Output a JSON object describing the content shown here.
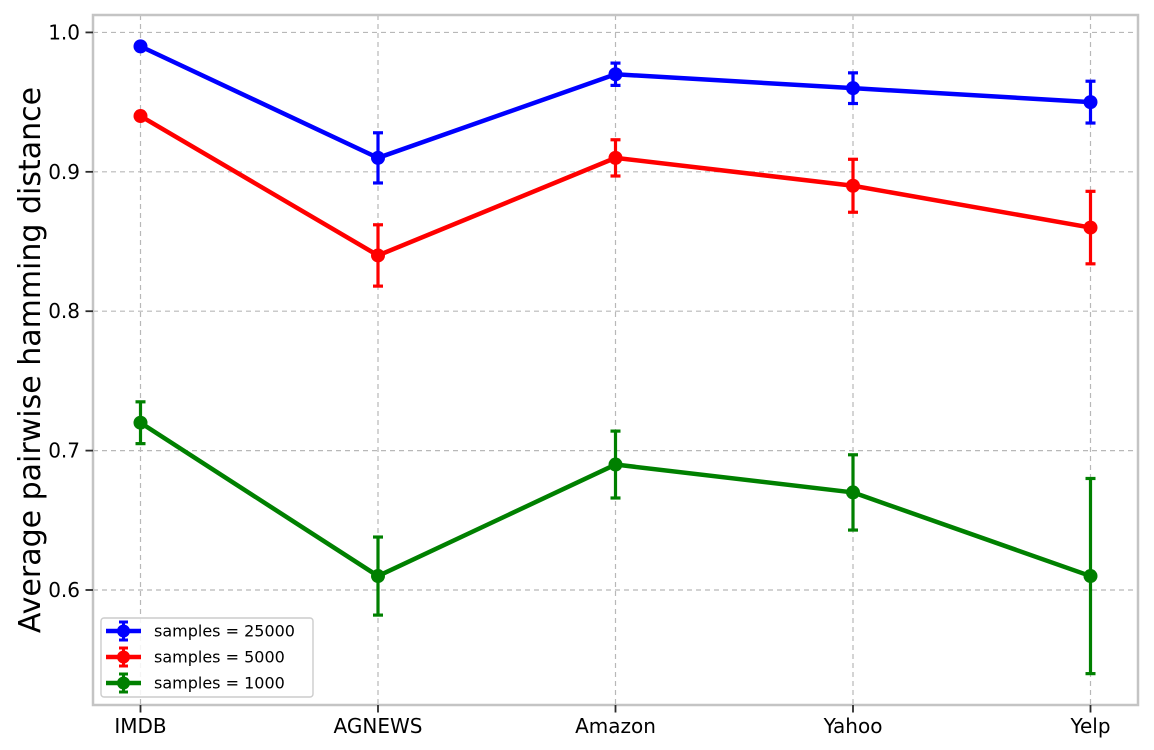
{
  "chart_data": {
    "type": "line",
    "subtype": "errorbar",
    "title": "",
    "xlabel": "",
    "ylabel": "Average pairwise hamming distance",
    "categories": [
      "IMDB",
      "AGNEWS",
      "Amazon",
      "Yahoo",
      "Yelp"
    ],
    "series": [
      {
        "name": "samples = 25000",
        "color": "#0000ff",
        "values": [
          0.99,
          0.91,
          0.97,
          0.96,
          0.95
        ],
        "yerr": [
          0.002,
          0.018,
          0.008,
          0.011,
          0.015
        ]
      },
      {
        "name": "samples = 5000",
        "color": "#ff0000",
        "values": [
          0.94,
          0.84,
          0.91,
          0.89,
          0.86
        ],
        "yerr": [
          0.002,
          0.022,
          0.013,
          0.019,
          0.026
        ]
      },
      {
        "name": "samples = 1000",
        "color": "#008000",
        "values": [
          0.72,
          0.61,
          0.69,
          0.67,
          0.61
        ],
        "yerr": [
          0.015,
          0.028,
          0.024,
          0.027,
          0.07
        ]
      }
    ],
    "yticks": [
      {
        "value": 0.6,
        "label": "0.6"
      },
      {
        "value": 0.7,
        "label": "0.7"
      },
      {
        "value": 0.8,
        "label": "0.8"
      },
      {
        "value": 0.9,
        "label": "0.9"
      },
      {
        "value": 1.0,
        "label": "1.0"
      }
    ],
    "ylim": [
      0.5175,
      1.0125
    ],
    "xlim": [
      -0.2,
      4.2
    ],
    "grid": true,
    "grid_style": "dashed",
    "legend_position": "lower left",
    "colors": {
      "spine": "#c4c4c4",
      "grid": "#b8b8b8",
      "tick_mark": "#2b2b2b",
      "tick_text": "#000000",
      "label_text": "#000000",
      "legend_border": "#cccccc",
      "legend_bg": "#ffffff"
    }
  }
}
